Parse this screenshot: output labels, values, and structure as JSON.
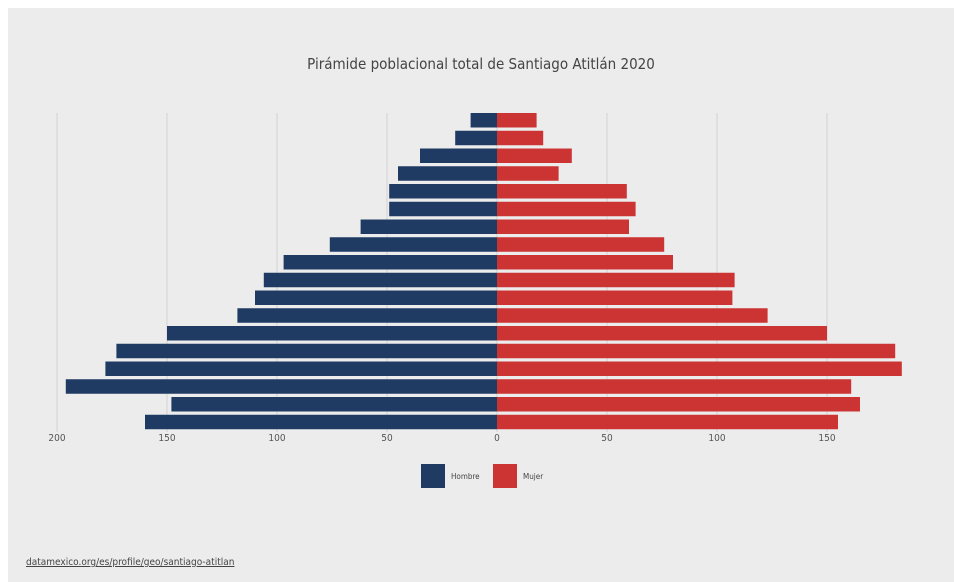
{
  "chart_data": {
    "type": "bar",
    "title": "Pirámide poblacional total de Santiago Atitlán 2020",
    "xlim": [
      -200,
      185
    ],
    "ticks": [
      {
        "v": -200,
        "label": "200"
      },
      {
        "v": -150,
        "label": "150"
      },
      {
        "v": -100,
        "label": "100"
      },
      {
        "v": -50,
        "label": "50"
      },
      {
        "v": 0,
        "label": "0"
      },
      {
        "v": 50,
        "label": "50"
      },
      {
        "v": 100,
        "label": "100"
      },
      {
        "v": 150,
        "label": "150"
      }
    ],
    "grid": true,
    "legend_position": "bottom-center",
    "series": [
      {
        "name": "Hombre",
        "color": "#1f3b63",
        "values": [
          12,
          19,
          35,
          45,
          49,
          49,
          62,
          76,
          97,
          106,
          110,
          118,
          150,
          173,
          178,
          196,
          148,
          160
        ]
      },
      {
        "name": "Mujer",
        "color": "#cc3333",
        "values": [
          18,
          21,
          34,
          28,
          59,
          63,
          60,
          76,
          80,
          108,
          107,
          123,
          150,
          181,
          184,
          161,
          165,
          155
        ]
      }
    ]
  },
  "source": "datamexico.org/es/profile/geo/santiago-atitlan"
}
